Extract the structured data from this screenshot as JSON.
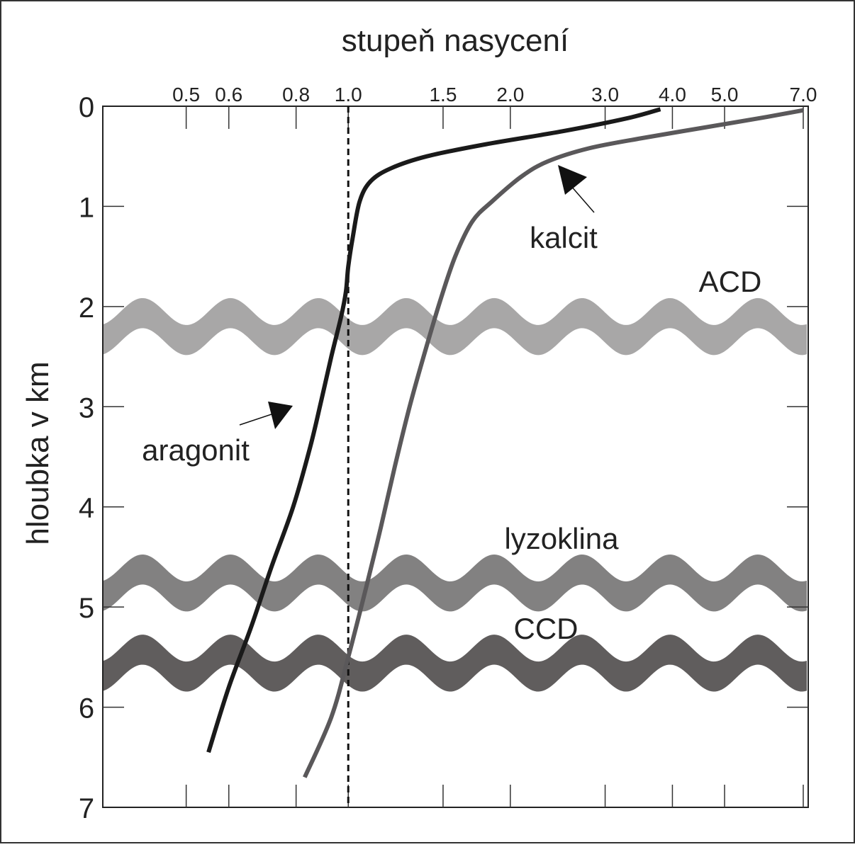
{
  "chart_data": {
    "type": "line",
    "title": "",
    "xlabel": "stupeň nasycení",
    "ylabel": "hloubka v km",
    "x_scale": "log",
    "x_ticks": [
      "0.5",
      "0.6",
      "0.8",
      "1.0",
      "1.5",
      "2.0",
      "3.0",
      "4.0",
      "5.0",
      "7.0"
    ],
    "x_tick_values": [
      0.5,
      0.6,
      0.8,
      1.0,
      1.5,
      2.0,
      3.0,
      4.0,
      5.0,
      7.0
    ],
    "y_ticks": [
      "0",
      "1",
      "2",
      "3",
      "4",
      "5",
      "6",
      "7"
    ],
    "ylim": [
      0,
      7
    ],
    "y_inverted": true,
    "reference_line": {
      "x": 1.0,
      "style": "dashed"
    },
    "series": [
      {
        "name": "aragonit",
        "color": "#1a1a1a",
        "points": [
          [
            3.8,
            0.03
          ],
          [
            3.3,
            0.12
          ],
          [
            2.5,
            0.25
          ],
          [
            1.8,
            0.38
          ],
          [
            1.4,
            0.5
          ],
          [
            1.2,
            0.62
          ],
          [
            1.1,
            0.75
          ],
          [
            1.05,
            0.95
          ],
          [
            1.02,
            1.3
          ],
          [
            1.0,
            1.6
          ],
          [
            0.99,
            1.85
          ],
          [
            0.97,
            2.1
          ],
          [
            0.93,
            2.5
          ],
          [
            0.89,
            2.95
          ],
          [
            0.85,
            3.4
          ],
          [
            0.79,
            4.0
          ],
          [
            0.72,
            4.6
          ],
          [
            0.66,
            5.2
          ],
          [
            0.6,
            5.8
          ],
          [
            0.55,
            6.45
          ]
        ]
      },
      {
        "name": "kalcit",
        "color": "#5a585a",
        "points": [
          [
            7.0,
            0.04
          ],
          [
            5.8,
            0.12
          ],
          [
            4.5,
            0.22
          ],
          [
            3.5,
            0.32
          ],
          [
            2.8,
            0.42
          ],
          [
            2.35,
            0.55
          ],
          [
            2.1,
            0.7
          ],
          [
            1.85,
            0.95
          ],
          [
            1.7,
            1.15
          ],
          [
            1.58,
            1.5
          ],
          [
            1.48,
            1.95
          ],
          [
            1.38,
            2.5
          ],
          [
            1.3,
            3.0
          ],
          [
            1.22,
            3.6
          ],
          [
            1.15,
            4.2
          ],
          [
            1.08,
            4.8
          ],
          [
            1.0,
            5.5
          ],
          [
            0.93,
            6.1
          ],
          [
            0.83,
            6.7
          ]
        ]
      }
    ],
    "bands": [
      {
        "name": "ACD",
        "depth_center": 2.2,
        "thickness": 0.3,
        "color": "#a8a7a7"
      },
      {
        "name": "lyzoklina",
        "depth_center": 4.76,
        "thickness": 0.3,
        "color": "#828181"
      },
      {
        "name": "CCD",
        "depth_center": 5.56,
        "thickness": 0.3,
        "color": "#605d5d"
      }
    ],
    "annotations": [
      {
        "text": "aragonit",
        "series": "aragonit"
      },
      {
        "text": "kalcit",
        "series": "kalcit"
      },
      {
        "text": "ACD",
        "band": "ACD"
      },
      {
        "text": "lyzoklina",
        "band": "lyzoklina"
      },
      {
        "text": "CCD",
        "band": "CCD"
      }
    ]
  }
}
